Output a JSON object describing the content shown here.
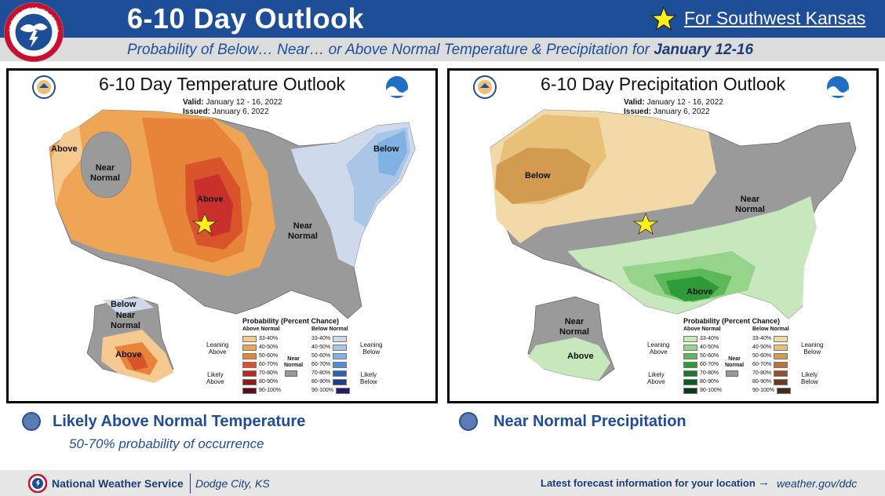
{
  "header": {
    "title": "6-10 Day Outlook",
    "region_link": "For Southwest Kansas",
    "subtitle_prefix": "Probability of Below… Near… or Above Normal Temperature & Precipitation for ",
    "subtitle_dates": "January 12-16",
    "logo_text": "NATIONAL WEATHER SERVICE"
  },
  "colors": {
    "header_blue": "#1f4e99",
    "above_temp": "#e8833a",
    "above_temp_strong": "#c9302c",
    "near_normal": "#9a9a9a",
    "below_temp": "#9cc3e6",
    "below_precip": "#e8c07a",
    "above_precip": "#8fd08a",
    "star": "#ffef1a"
  },
  "temperature_map": {
    "title": "6-10 Day Temperature Outlook",
    "valid_label": "Valid:",
    "valid_value": "January 12 - 16, 2022",
    "issued_label": "Issued:",
    "issued_value": "January 6, 2022",
    "labels": {
      "above_west": "Above",
      "near_normal_west": "Near\nNormal",
      "above_center": "Above",
      "below_ne": "Below",
      "near_normal_east": "Near\nNormal",
      "ak_below": "Below",
      "ak_near_normal": "Near\nNormal",
      "ak_above": "Above"
    }
  },
  "precipitation_map": {
    "title": "6-10 Day Precipitation Outlook",
    "valid_label": "Valid:",
    "valid_value": "January 12 - 16, 2022",
    "issued_label": "Issued:",
    "issued_value": "January 6, 2022",
    "labels": {
      "below_west": "Below",
      "near_normal_east": "Near\nNormal",
      "above_south": "Above",
      "ak_near_normal": "Near\nNormal",
      "ak_above": "Above"
    }
  },
  "legend": {
    "title": "Probability (Percent Chance)",
    "above_header": "Above Normal",
    "below_header": "Below Normal",
    "near_normal": "Near\nNormal",
    "leaning_above": "Leaning\nAbove",
    "likely_above": "Likely\nAbove",
    "leaning_below": "Leaning\nBelow",
    "likely_below": "Likely\nBelow",
    "ranges": [
      "33-40%",
      "40-50%",
      "50-60%",
      "60-70%",
      "70-80%",
      "80-90%",
      "90-100%"
    ],
    "temp_above_colors": [
      "#f5c98f",
      "#efa556",
      "#e8833a",
      "#d9532b",
      "#b92c25",
      "#8c1c1c",
      "#5c0f10"
    ],
    "temp_below_colors": [
      "#cfd9ec",
      "#a9c6e6",
      "#7fb2e2",
      "#4f8fd2",
      "#2c63b5",
      "#1f3e8d",
      "#281a66"
    ],
    "precip_above_colors": [
      "#c7e8bc",
      "#96d48b",
      "#5bb95a",
      "#2f9a3a",
      "#1c7a2e",
      "#0f5a20",
      "#083c15"
    ],
    "precip_below_colors": [
      "#f1d9a8",
      "#e8c07a",
      "#d39b4f",
      "#b8743a",
      "#91522a",
      "#6b3a20",
      "#4a2614"
    ]
  },
  "summary": {
    "temperature": "Likely Above Normal Temperature",
    "temperature_probability": "50-70% probability of occurrence",
    "precipitation": "Near Normal Precipitation"
  },
  "footer": {
    "agency": "National Weather Service",
    "office": "Dodge City, KS",
    "latest": "Latest forecast information for your location",
    "arrow": "→",
    "url": "weather.gov/ddc"
  }
}
